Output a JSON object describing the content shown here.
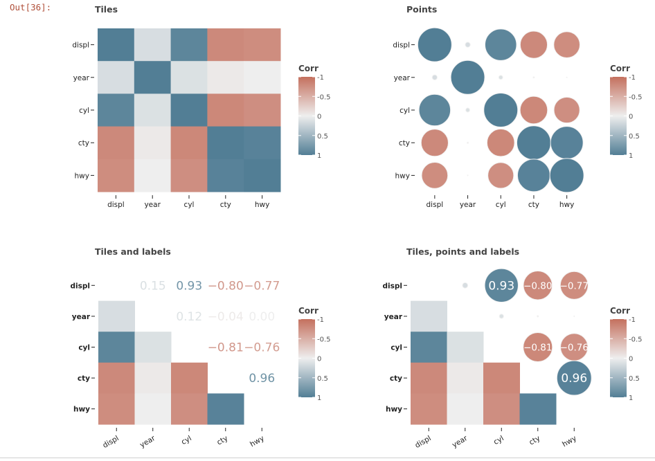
{
  "cell_prompt": "Out[36]:",
  "colors": {
    "negative": "#c4705e",
    "zero": "#eeeeee",
    "positive": "#527e95"
  },
  "chart_data": [
    {
      "type": "heatmap",
      "title": "Tiles",
      "variables": [
        "displ",
        "year",
        "cyl",
        "cty",
        "hwy"
      ],
      "matrix": [
        [
          1,
          0.15,
          0.93,
          -0.8,
          -0.77
        ],
        [
          0.15,
          1,
          0.12,
          -0.04,
          0.0
        ],
        [
          0.93,
          0.12,
          1,
          -0.81,
          -0.76
        ],
        [
          -0.8,
          -0.04,
          -0.81,
          1,
          0.96
        ],
        [
          -0.77,
          0.0,
          -0.76,
          0.96,
          1
        ]
      ],
      "style": "tiles",
      "legend": {
        "title": "Corr",
        "ticks": [
          "-1",
          "-0.5",
          "0",
          "0.5",
          "1"
        ],
        "values": [
          -1,
          -0.5,
          0,
          0.5,
          1
        ],
        "placement": "right"
      }
    },
    {
      "type": "scatter",
      "title": "Points",
      "variables": [
        "displ",
        "year",
        "cyl",
        "cty",
        "hwy"
      ],
      "matrix": [
        [
          1,
          0.15,
          0.93,
          -0.8,
          -0.77
        ],
        [
          0.15,
          1,
          0.12,
          -0.04,
          0.0
        ],
        [
          0.93,
          0.12,
          1,
          -0.81,
          -0.76
        ],
        [
          -0.8,
          -0.04,
          -0.81,
          1,
          0.96
        ],
        [
          -0.77,
          0.0,
          -0.76,
          0.96,
          1
        ]
      ],
      "style": "points",
      "legend": {
        "title": "Corr",
        "ticks": [
          "-1",
          "-0.5",
          "0",
          "0.5",
          "1"
        ],
        "values": [
          -1,
          -0.5,
          0,
          0.5,
          1
        ],
        "placement": "right"
      }
    },
    {
      "type": "heatmap",
      "title": "Tiles and labels",
      "variables": [
        "displ",
        "year",
        "cyl",
        "cty",
        "hwy"
      ],
      "matrix": [
        [
          1,
          0.15,
          0.93,
          -0.8,
          -0.77
        ],
        [
          0.15,
          1,
          0.12,
          -0.04,
          0.0
        ],
        [
          0.93,
          0.12,
          1,
          -0.81,
          -0.76
        ],
        [
          -0.8,
          -0.04,
          -0.81,
          1,
          0.96
        ],
        [
          -0.77,
          0.0,
          -0.76,
          0.96,
          1
        ]
      ],
      "style": "lower-tiles-upper-labels",
      "legend": {
        "title": "Corr",
        "ticks": [
          "-1",
          "-0.5",
          "0",
          "0.5",
          "1"
        ],
        "values": [
          -1,
          -0.5,
          0,
          0.5,
          1
        ],
        "placement": "right"
      }
    },
    {
      "type": "heatmap",
      "title": "Tiles, points and labels",
      "variables": [
        "displ",
        "year",
        "cyl",
        "cty",
        "hwy"
      ],
      "matrix": [
        [
          1,
          0.15,
          0.93,
          -0.8,
          -0.77
        ],
        [
          0.15,
          1,
          0.12,
          -0.04,
          0.0
        ],
        [
          0.93,
          0.12,
          1,
          -0.81,
          -0.76
        ],
        [
          -0.8,
          -0.04,
          -0.81,
          1,
          0.96
        ],
        [
          -0.77,
          0.0,
          -0.76,
          0.96,
          1
        ]
      ],
      "style": "lower-tiles-upper-points-labels",
      "legend": {
        "title": "Corr",
        "ticks": [
          "-1",
          "-0.5",
          "0",
          "0.5",
          "1"
        ],
        "values": [
          -1,
          -0.5,
          0,
          0.5,
          1
        ],
        "placement": "right"
      }
    }
  ]
}
